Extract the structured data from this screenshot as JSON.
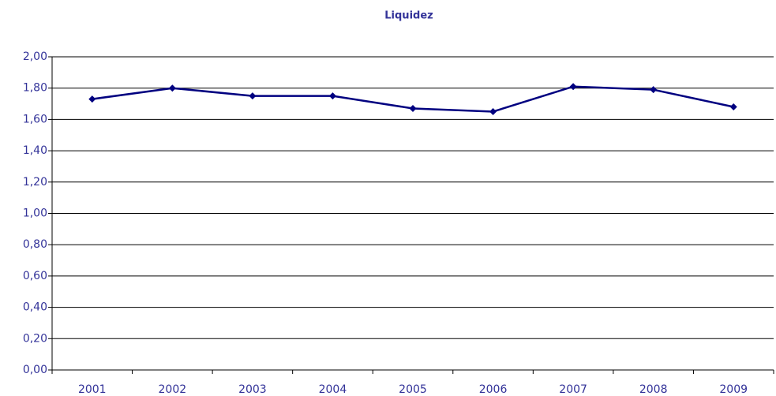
{
  "chart_data": {
    "type": "line",
    "title": "Liquidez",
    "categories": [
      "2001",
      "2002",
      "2003",
      "2004",
      "2005",
      "2006",
      "2007",
      "2008",
      "2009"
    ],
    "series": [
      {
        "color": "#000080",
        "values": [
          1.73,
          1.8,
          1.75,
          1.75,
          1.67,
          1.65,
          1.81,
          1.79,
          1.68
        ]
      }
    ],
    "ylim": [
      0,
      2
    ],
    "yticks": [
      {
        "value": 0,
        "label": "0,00"
      },
      {
        "value": 0.2,
        "label": "0,20"
      },
      {
        "value": 0.4,
        "label": "0,40"
      },
      {
        "value": 0.6,
        "label": "0,60"
      },
      {
        "value": 0.8,
        "label": "0,80"
      },
      {
        "value": 1,
        "label": "1,00"
      },
      {
        "value": 1.2,
        "label": "1,20"
      },
      {
        "value": 1.4,
        "label": "1,40"
      },
      {
        "value": 1.6,
        "label": "1,60"
      },
      {
        "value": 1.8,
        "label": "1,80"
      },
      {
        "value": 2,
        "label": "2,00"
      }
    ],
    "grid": true
  }
}
